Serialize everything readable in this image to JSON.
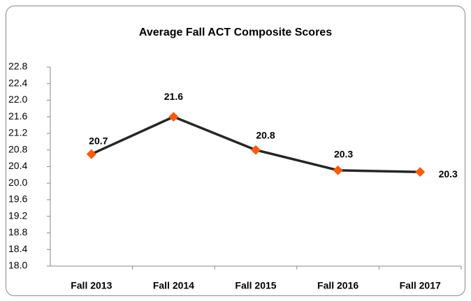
{
  "chart_data": {
    "type": "line",
    "title": "Average Fall ACT Composite Scores",
    "categories": [
      "Fall 2013",
      "Fall 2014",
      "Fall 2015",
      "Fall 2016",
      "Fall 2017"
    ],
    "series": [
      {
        "name": "Average Fall ACT Composite Scores",
        "color": "#262626",
        "marker_color": "#ff5a0a",
        "values": [
          20.7,
          21.6,
          20.8,
          20.31,
          20.27
        ],
        "value_labels": [
          "20.7",
          "21.6",
          "20.8",
          "20.3",
          "20.3"
        ]
      }
    ],
    "ylim": [
      18.0,
      22.8
    ],
    "yticks": [
      {
        "value": 18.0,
        "label": "18.0"
      },
      18.4,
      18.8,
      19.2,
      19.6,
      {
        "value": 20.0,
        "label": "20.0"
      },
      20.4,
      20.8,
      21.2,
      21.6,
      {
        "value": 22.0,
        "label": "22.0"
      },
      22.4,
      22.8
    ],
    "grid": false,
    "legend": false
  }
}
